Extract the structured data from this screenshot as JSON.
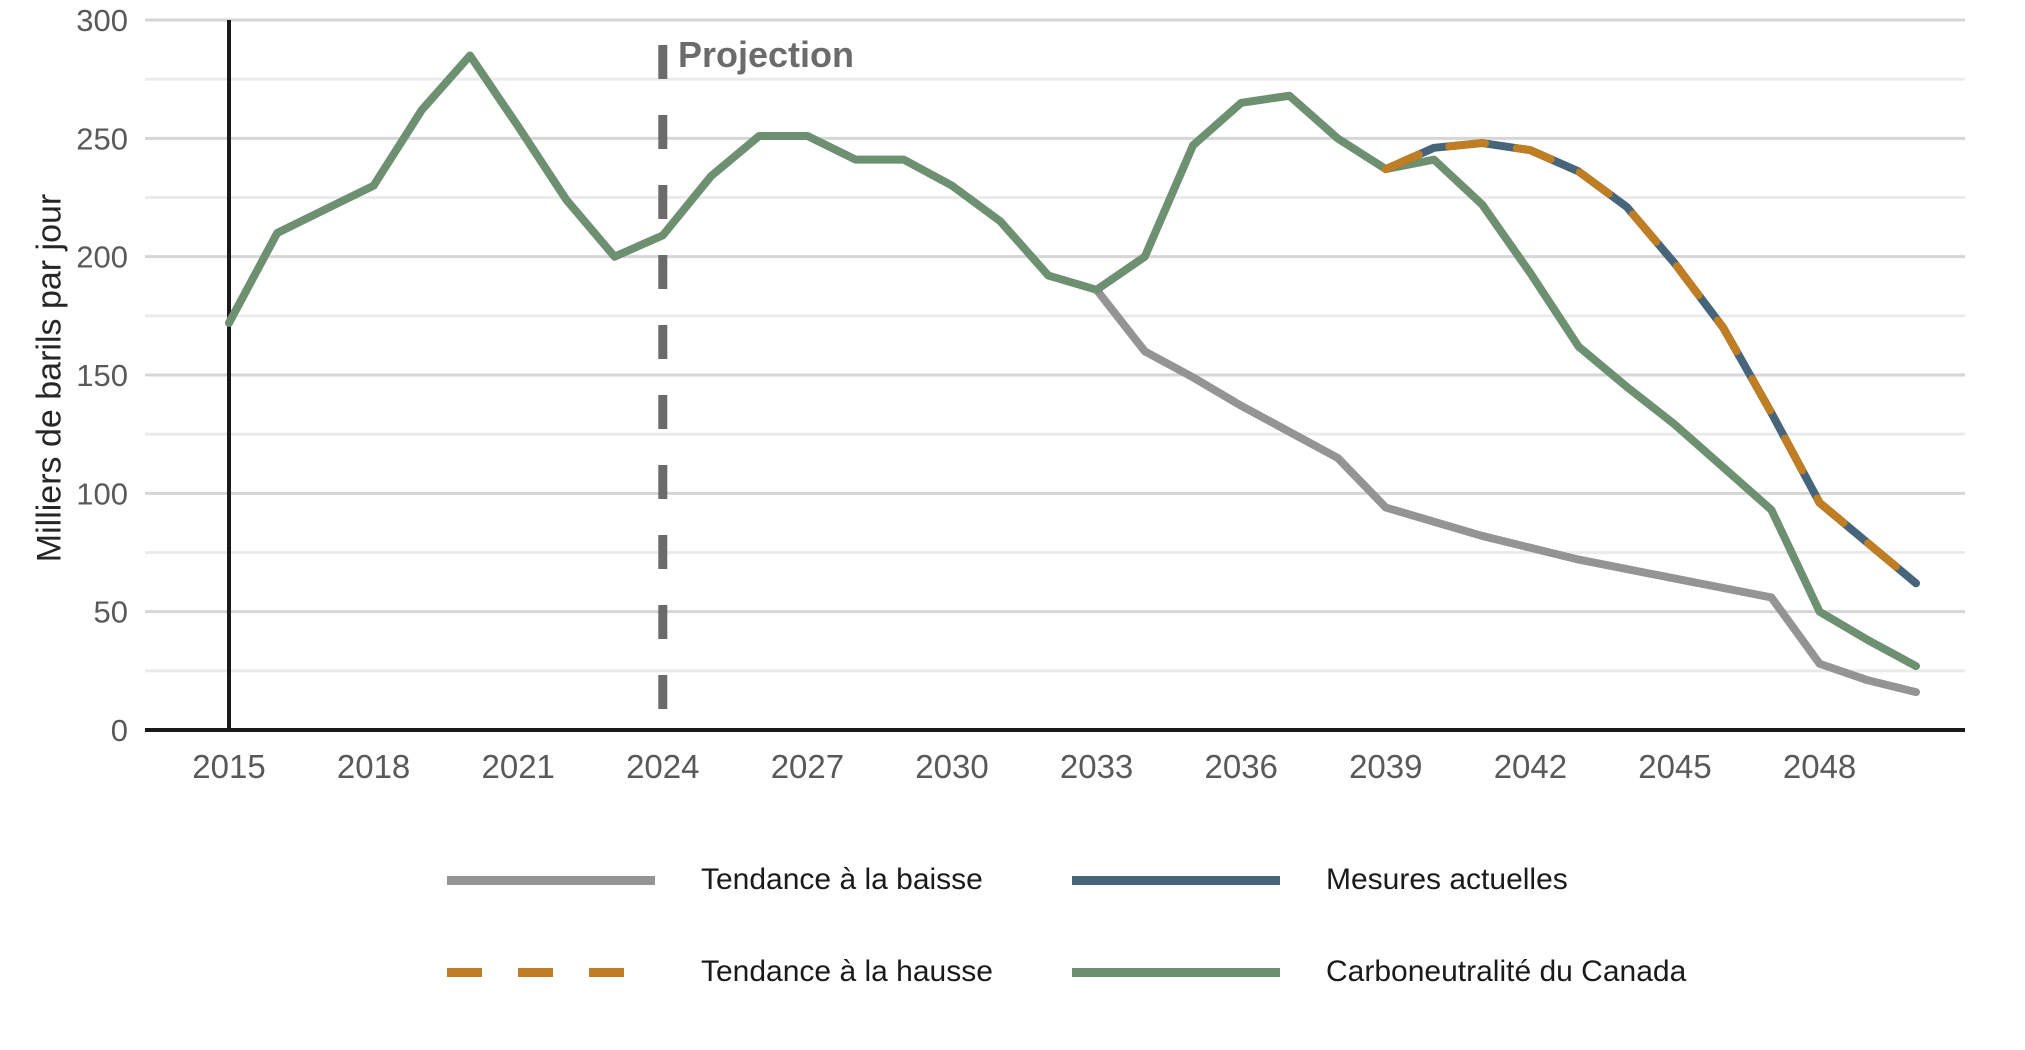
{
  "labels": {
    "y_axis_title": "Milliers de barils par jour",
    "projection_annotation": "Projection"
  },
  "legend": {
    "items": [
      {
        "label": "Tendance à la baisse",
        "color": "#949494",
        "style": "solid"
      },
      {
        "label": "Mesures actuelles",
        "color": "#47657a",
        "style": "solid"
      },
      {
        "label": "Tendance à la hausse",
        "color": "#bf7d24",
        "style": "dashed"
      },
      {
        "label": "Carboneutralité du Canada",
        "color": "#6d9071",
        "style": "solid"
      }
    ]
  },
  "chart_data": {
    "type": "line",
    "title": "",
    "xlabel": "",
    "ylabel": "Milliers de barils par jour",
    "annotation": "Projection",
    "projection_start_year": 2024,
    "ylim": [
      0,
      300
    ],
    "y_major_ticks": [
      0,
      50,
      100,
      150,
      200,
      250,
      300
    ],
    "y_minor_step": 25,
    "grid": "horizontal",
    "legend_position": "below",
    "x": [
      2015,
      2016,
      2017,
      2018,
      2019,
      2020,
      2021,
      2022,
      2023,
      2024,
      2025,
      2026,
      2027,
      2028,
      2029,
      2030,
      2031,
      2032,
      2033,
      2034,
      2035,
      2036,
      2037,
      2038,
      2039,
      2040,
      2041,
      2042,
      2043,
      2044,
      2045,
      2046,
      2047,
      2048,
      2049,
      2050
    ],
    "x_tick_labels": [
      2015,
      2018,
      2021,
      2024,
      2027,
      2030,
      2033,
      2036,
      2039,
      2042,
      2045,
      2048
    ],
    "series": [
      {
        "name": "Tendance à la baisse",
        "color": "#949494",
        "style": "solid",
        "values": [
          null,
          null,
          null,
          null,
          null,
          null,
          null,
          null,
          null,
          null,
          null,
          null,
          null,
          null,
          null,
          null,
          null,
          null,
          186,
          160,
          149,
          137,
          126,
          115,
          94,
          88,
          82,
          77,
          72,
          68,
          64,
          60,
          56,
          28,
          21,
          16
        ]
      },
      {
        "name": "Tendance à la hausse",
        "color": "#bf7d24",
        "style": "dashed",
        "values": [
          null,
          null,
          null,
          null,
          null,
          null,
          null,
          null,
          null,
          null,
          null,
          null,
          null,
          null,
          null,
          null,
          null,
          null,
          null,
          null,
          null,
          null,
          null,
          null,
          237,
          246,
          248,
          245,
          236,
          221,
          197,
          170,
          134,
          96,
          79,
          62
        ]
      },
      {
        "name": "Mesures actuelles",
        "color": "#47657a",
        "style": "solid",
        "values": [
          null,
          null,
          null,
          null,
          null,
          null,
          null,
          null,
          null,
          null,
          null,
          null,
          null,
          null,
          null,
          null,
          null,
          null,
          null,
          null,
          null,
          null,
          null,
          null,
          237,
          246,
          248,
          245,
          236,
          221,
          197,
          170,
          134,
          96,
          79,
          62
        ]
      },
      {
        "name": "Carboneutralité du Canada",
        "color": "#6d9071",
        "style": "solid",
        "values": [
          172,
          210,
          220,
          230,
          262,
          285,
          255,
          224,
          200,
          209,
          234,
          251,
          251,
          241,
          241,
          230,
          215,
          192,
          186,
          200,
          247,
          265,
          268,
          250,
          237,
          241,
          222,
          193,
          162,
          145,
          129,
          111,
          93,
          50,
          38,
          27
        ]
      }
    ]
  }
}
